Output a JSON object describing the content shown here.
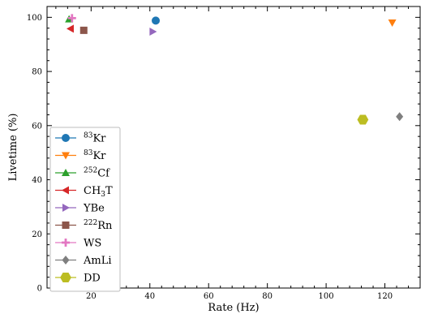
{
  "chart_data": {
    "type": "scatter",
    "title": "",
    "xlabel": "Rate (Hz)",
    "ylabel": "Livetime (%)",
    "xlim": [
      5,
      132
    ],
    "ylim": [
      0,
      104
    ],
    "xticks": [
      20,
      40,
      60,
      80,
      100,
      120
    ],
    "yticks": [
      0,
      20,
      40,
      60,
      80,
      100
    ],
    "grid": false,
    "legend_position": "lower-left",
    "series": [
      {
        "isotope": "83",
        "name": "Kr",
        "marker": "circle",
        "color": "#1f77b4",
        "x": [
          42
        ],
        "y": [
          98.8
        ]
      },
      {
        "isotope": "83",
        "name": "Kr",
        "marker": "triangle-down",
        "color": "#ff7f0e",
        "x": [
          122.5
        ],
        "y": [
          98
        ]
      },
      {
        "isotope": "252",
        "name": "Cf",
        "marker": "triangle-up",
        "color": "#2ca02c",
        "x": [
          12.5
        ],
        "y": [
          99.3
        ]
      },
      {
        "isotope": "",
        "name": "CH",
        "subscript": "3",
        "suffix": "T",
        "marker": "triangle-left",
        "color": "#d62728",
        "x": [
          13
        ],
        "y": [
          95.8
        ]
      },
      {
        "isotope": "",
        "name": "YBe",
        "marker": "triangle-right",
        "color": "#9467bd",
        "x": [
          41
        ],
        "y": [
          94.7
        ]
      },
      {
        "isotope": "222",
        "name": "Rn",
        "marker": "square",
        "color": "#8c564b",
        "x": [
          17.5
        ],
        "y": [
          95.2
        ]
      },
      {
        "isotope": "",
        "name": "WS",
        "marker": "plus",
        "color": "#e377c2",
        "x": [
          13.5
        ],
        "y": [
          99.7
        ]
      },
      {
        "isotope": "",
        "name": "AmLi",
        "marker": "diamond",
        "color": "#7f7f7f",
        "x": [
          125
        ],
        "y": [
          63.3
        ]
      },
      {
        "isotope": "",
        "name": "DD",
        "marker": "hexagon",
        "color": "#bcbd22",
        "x": [
          112.5
        ],
        "y": [
          62.2
        ]
      }
    ]
  }
}
